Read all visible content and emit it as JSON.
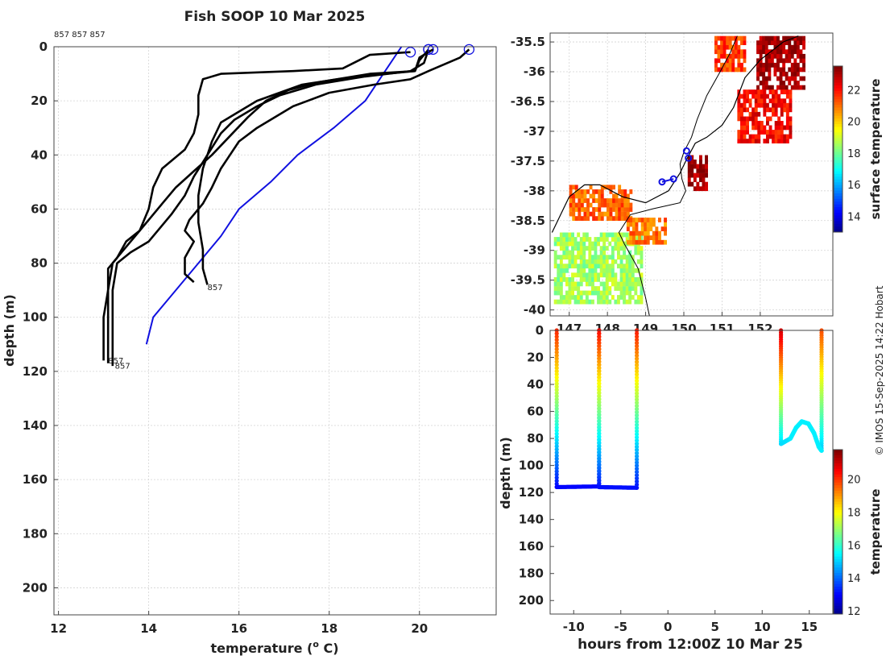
{
  "title": "Fish SOOP 10 Mar 2025",
  "credit": "© IMOS 15-Sep-2025 14:22 Hobart",
  "chart_data": [
    {
      "type": "line",
      "name": "temperature-depth-profiles",
      "id_label": "857 857 857",
      "xlabel_main": "temperature (",
      "xlabel_sup": "o",
      "xlabel_end": " C)",
      "ylabel": "depth (m)",
      "xlim": [
        11.9,
        21.7
      ],
      "ylim": [
        210,
        0
      ],
      "xticks": [
        12,
        14,
        16,
        18,
        20
      ],
      "yticks": [
        0,
        20,
        40,
        60,
        80,
        100,
        120,
        140,
        160,
        180,
        200
      ],
      "grid": true,
      "series": [
        {
          "name": "climatology",
          "color": "#1010e0",
          "points": [
            [
              19.6,
              0
            ],
            [
              19.2,
              10
            ],
            [
              18.8,
              20
            ],
            [
              18.1,
              30
            ],
            [
              17.3,
              40
            ],
            [
              16.7,
              50
            ],
            [
              16.0,
              60
            ],
            [
              15.6,
              70
            ],
            [
              15.1,
              80
            ],
            [
              14.6,
              90
            ],
            [
              14.1,
              100
            ],
            [
              13.95,
              110
            ]
          ]
        },
        {
          "name": "profile-1",
          "color": "#000000",
          "points": [
            [
              19.8,
              2
            ],
            [
              18.9,
              3
            ],
            [
              18.3,
              8
            ],
            [
              17.2,
              9
            ],
            [
              15.6,
              10
            ],
            [
              15.2,
              12
            ],
            [
              15.1,
              18
            ],
            [
              15.1,
              25
            ],
            [
              15.0,
              32
            ],
            [
              14.8,
              38
            ],
            [
              14.3,
              45
            ],
            [
              14.1,
              52
            ],
            [
              14.0,
              60
            ],
            [
              13.8,
              68
            ],
            [
              13.5,
              72
            ],
            [
              13.3,
              78
            ],
            [
              13.1,
              82
            ],
            [
              13.1,
              95
            ],
            [
              13.1,
              105
            ],
            [
              13.1,
              117
            ]
          ]
        },
        {
          "name": "profile-2",
          "color": "#000000",
          "points": [
            [
              20.2,
              1
            ],
            [
              20.0,
              5
            ],
            [
              19.9,
              9
            ],
            [
              18.6,
              11
            ],
            [
              17.4,
              14
            ],
            [
              16.4,
              20
            ],
            [
              15.9,
              25
            ],
            [
              15.6,
              28
            ],
            [
              15.4,
              35
            ],
            [
              15.2,
              45
            ],
            [
              15.1,
              55
            ],
            [
              15.1,
              65
            ],
            [
              15.2,
              75
            ],
            [
              15.2,
              82
            ],
            [
              15.3,
              88
            ]
          ]
        },
        {
          "name": "profile-3",
          "color": "#000000",
          "points": [
            [
              20.2,
              1
            ],
            [
              20.1,
              6
            ],
            [
              19.8,
              9
            ],
            [
              18.8,
              11
            ],
            [
              17.7,
              14
            ],
            [
              16.9,
              18
            ],
            [
              16.4,
              22
            ],
            [
              15.9,
              27
            ],
            [
              15.6,
              32
            ],
            [
              15.3,
              40
            ],
            [
              15.0,
              48
            ],
            [
              14.8,
              55
            ],
            [
              14.5,
              62
            ],
            [
              14.2,
              68
            ],
            [
              14.0,
              72
            ],
            [
              13.6,
              76
            ],
            [
              13.3,
              80
            ],
            [
              13.2,
              90
            ],
            [
              13.2,
              100
            ],
            [
              13.2,
              118
            ]
          ]
        },
        {
          "name": "profile-4",
          "color": "#000000",
          "points": [
            [
              21.1,
              1
            ],
            [
              20.9,
              4
            ],
            [
              20.2,
              9
            ],
            [
              19.8,
              12
            ],
            [
              19.0,
              14
            ],
            [
              18.0,
              17
            ],
            [
              17.2,
              22
            ],
            [
              16.4,
              30
            ],
            [
              16.0,
              35
            ],
            [
              15.8,
              40
            ],
            [
              15.6,
              45
            ],
            [
              15.4,
              52
            ],
            [
              15.2,
              58
            ],
            [
              14.9,
              64
            ],
            [
              14.8,
              68
            ],
            [
              15.0,
              72
            ],
            [
              14.8,
              78
            ],
            [
              14.8,
              84
            ],
            [
              15.0,
              87
            ]
          ]
        },
        {
          "name": "profile-5",
          "color": "#000000",
          "points": [
            [
              20.3,
              1
            ],
            [
              20.0,
              4
            ],
            [
              19.9,
              9
            ],
            [
              18.9,
              10
            ],
            [
              17.8,
              13
            ],
            [
              17.1,
              16
            ],
            [
              16.6,
              20
            ],
            [
              16.2,
              26
            ],
            [
              15.8,
              33
            ],
            [
              15.4,
              40
            ],
            [
              15.0,
              46
            ],
            [
              14.6,
              52
            ],
            [
              14.3,
              58
            ],
            [
              14.0,
              64
            ],
            [
              13.7,
              70
            ],
            [
              13.4,
              76
            ],
            [
              13.2,
              80
            ],
            [
              13.1,
              90
            ],
            [
              13.0,
              100
            ],
            [
              13.0,
              116
            ]
          ]
        }
      ],
      "end_labels": [
        {
          "text": "857",
          "x": 15.3,
          "y": 90
        },
        {
          "text": "857",
          "x": 13.1,
          "y": 117
        },
        {
          "text": "857",
          "x": 13.25,
          "y": 119
        }
      ]
    },
    {
      "type": "heatmap",
      "name": "surface-temperature-map",
      "xlim": [
        146.5,
        153.9
      ],
      "ylim": [
        -40.1,
        -35.35
      ],
      "xticks": [
        147,
        148,
        149,
        150,
        151,
        152
      ],
      "xtick_labels": [
        "147",
        "148",
        "149",
        "150",
        "151",
        "152"
      ],
      "yticks": [
        -35.5,
        -36,
        -36.5,
        -37,
        -37.5,
        -38,
        -38.5,
        -39,
        -39.5,
        -40
      ],
      "ytick_labels": [
        "-35.5",
        "-36",
        "-36.5",
        "-37",
        "-37.5",
        "-38",
        "-38.5",
        "-39",
        "-39.5",
        "-40"
      ],
      "colorbar": {
        "label": "surface temperature",
        "range": [
          13,
          23.5
        ],
        "ticks": [
          14,
          16,
          18,
          20,
          22
        ]
      },
      "sst_patches": [
        {
          "lon": [
            151.9,
            153.1
          ],
          "lat": [
            -36.3,
            -35.4
          ],
          "value": 23.2
        },
        {
          "lon": [
            151.4,
            152.8
          ],
          "lat": [
            -37.2,
            -36.3
          ],
          "value": 22.2
        },
        {
          "lon": [
            150.8,
            151.6
          ],
          "lat": [
            -36.0,
            -35.4
          ],
          "value": 21.6
        },
        {
          "lon": [
            150.1,
            150.6
          ],
          "lat": [
            -38.0,
            -37.4
          ],
          "value": 23.2
        },
        {
          "lon": [
            147.0,
            148.6
          ],
          "lat": [
            -38.5,
            -37.9
          ],
          "value": 21.2
        },
        {
          "lon": [
            146.6,
            148.9
          ],
          "lat": [
            -39.9,
            -38.7
          ],
          "value": 18.6
        },
        {
          "lon": [
            148.5,
            149.5
          ],
          "lat": [
            -38.9,
            -38.5
          ],
          "value": 21.0
        }
      ],
      "track_points": [
        [
          149.43,
          -37.85
        ],
        [
          149.73,
          -37.8
        ],
        [
          150.07,
          -37.33
        ],
        [
          150.12,
          -37.45
        ]
      ]
    },
    {
      "type": "scatter",
      "name": "depth-time-section",
      "xlabel": "hours from 12:00Z 10 Mar 25",
      "ylabel": "depth (m)",
      "xlim": [
        -12.5,
        17.5
      ],
      "ylim": [
        210,
        0
      ],
      "xticks": [
        -10,
        -5,
        0,
        5,
        10,
        15
      ],
      "yticks": [
        0,
        20,
        40,
        60,
        80,
        100,
        120,
        140,
        160,
        180,
        200
      ],
      "colorbar": {
        "label": "temperature",
        "range": [
          11.8,
          21.8
        ],
        "ticks": [
          12,
          14,
          16,
          18,
          20
        ]
      },
      "casts": [
        {
          "segments": [
            [
              -11.8,
              0,
              -11.8,
              116,
              20.2,
              13.1
            ],
            [
              -11.8,
              116,
              -7.3,
              115.5,
              13.1,
              13.1
            ],
            [
              -7.3,
              115.5,
              -7.3,
              0,
              13.1,
              20.5
            ]
          ]
        },
        {
          "segments": [
            [
              -7.3,
              0,
              -7.3,
              116,
              20.5,
              13.2
            ],
            [
              -7.3,
              116,
              -3.3,
              116.5,
              13.2,
              13.2
            ],
            [
              -3.3,
              116.5,
              -3.3,
              0,
              13.2,
              20.3
            ]
          ]
        },
        {
          "segments": [
            [
              12.0,
              0,
              12.0,
              84,
              21.0,
              15.2
            ],
            [
              12.0,
              84,
              13.0,
              80,
              15.2,
              15.3
            ]
          ]
        },
        {
          "segments": [
            [
              16.3,
              0,
              16.3,
              89,
              19.8,
              15.0
            ]
          ]
        }
      ],
      "arch": [
        [
          13.0,
          80
        ],
        [
          13.6,
          72
        ],
        [
          14.2,
          67.5
        ],
        [
          14.9,
          69
        ],
        [
          15.5,
          76
        ],
        [
          16.0,
          86
        ],
        [
          16.3,
          89
        ]
      ],
      "arch_temp": 15.4
    }
  ]
}
